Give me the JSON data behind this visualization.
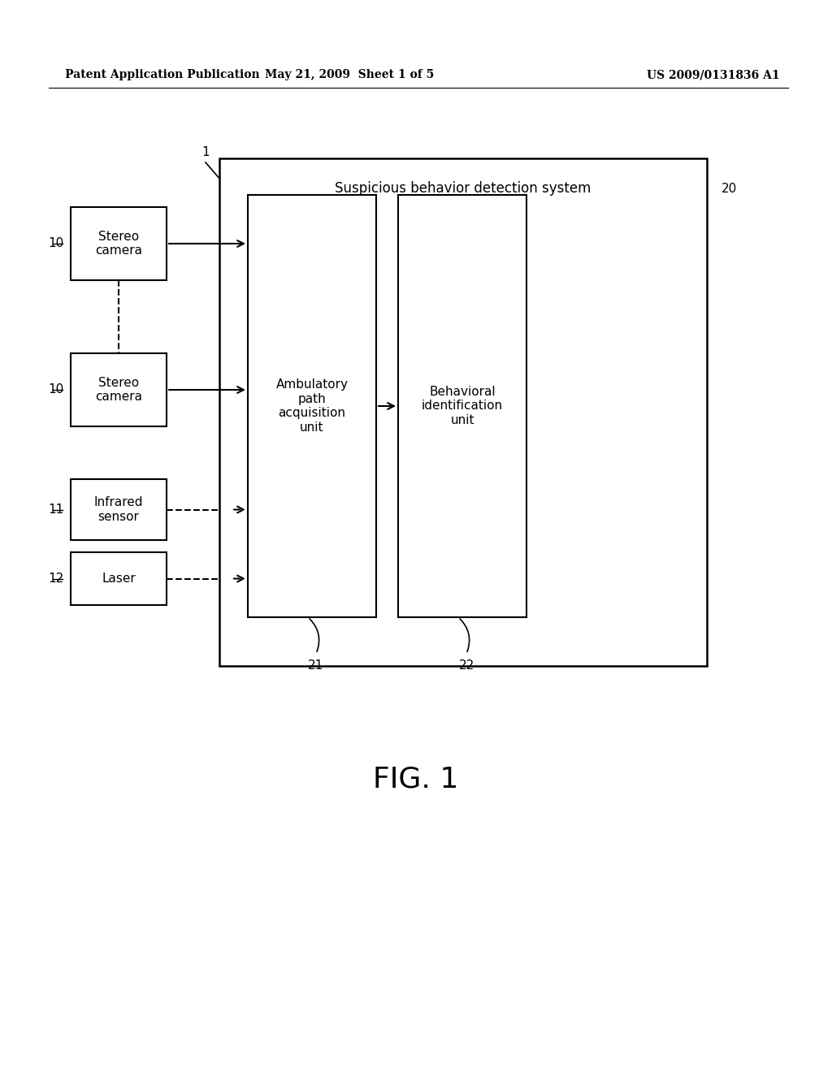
{
  "bg_color": "#ffffff",
  "text_color": "#000000",
  "header_left": "Patent Application Publication",
  "header_mid": "May 21, 2009  Sheet 1 of 5",
  "header_right": "US 2009/0131836 A1",
  "figure_label": "FIG. 1",
  "system_box_title": "Suspicious behavior detection system",
  "system_label": "20",
  "diagram_label": "1",
  "stereo_cam1_label": "Stereo\ncamera",
  "stereo_cam1_id": "10",
  "stereo_cam2_label": "Stereo\ncamera",
  "stereo_cam2_id": "10",
  "infrared_label": "Infrared\nsensor",
  "infrared_id": "11",
  "laser_label": "Laser",
  "laser_id": "12",
  "ambul_label": "Ambulatory\npath\nacquisition\nunit",
  "ambul_id": "21",
  "behav_label": "Behavioral\nidentification\nunit",
  "behav_id": "22"
}
